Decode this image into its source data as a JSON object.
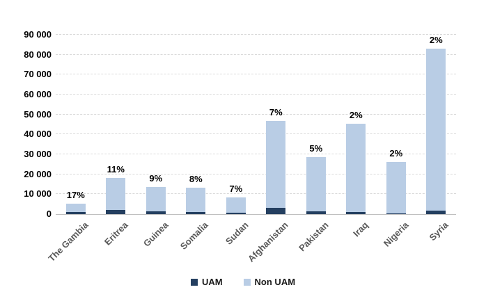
{
  "chart_data": {
    "type": "bar",
    "stacked": true,
    "categories": [
      "The Gambia",
      "Eritrea",
      "Guinea",
      "Somalia",
      "Sudan",
      "Afghanistan",
      "Pakistan",
      "Iraq",
      "Nigeria",
      "Syria"
    ],
    "series": [
      {
        "name": "UAM",
        "color": "#243F60",
        "values": [
          900,
          2000,
          1250,
          1050,
          580,
          3300,
          1450,
          900,
          520,
          1700
        ]
      },
      {
        "name": "Non UAM",
        "color": "#B9CDE5",
        "values": [
          4300,
          16200,
          12450,
          12050,
          7720,
          43500,
          27150,
          44600,
          25680,
          83800
        ]
      }
    ],
    "bar_totals_approx": [
      5200,
      18200,
      13700,
      13100,
      8300,
      46800,
      28600,
      45500,
      26200,
      85500
    ],
    "bar_labels": [
      "17%",
      "11%",
      "9%",
      "8%",
      "7%",
      "7%",
      "5%",
      "2%",
      "2%",
      "2%"
    ],
    "ylim": [
      0,
      90000
    ],
    "ytick_step": 10000,
    "ytick_labels": [
      "0",
      "10 000",
      "20 000",
      "30 000",
      "40 000",
      "50 000",
      "60 000",
      "70 000",
      "80 000",
      "90 000"
    ],
    "grid": "horizontal-dashed",
    "legend_position": "bottom",
    "colors": {
      "background": "#FFFFFF",
      "gridline": "#D9D9D9",
      "axis_line": "#BFBFBF",
      "x_label": "#595959",
      "y_label": "#000000",
      "data_label": "#000000"
    }
  },
  "legend": {
    "items": [
      {
        "label": "UAM",
        "color": "#243F60"
      },
      {
        "label": "Non UAM",
        "color": "#B9CDE5"
      }
    ]
  }
}
